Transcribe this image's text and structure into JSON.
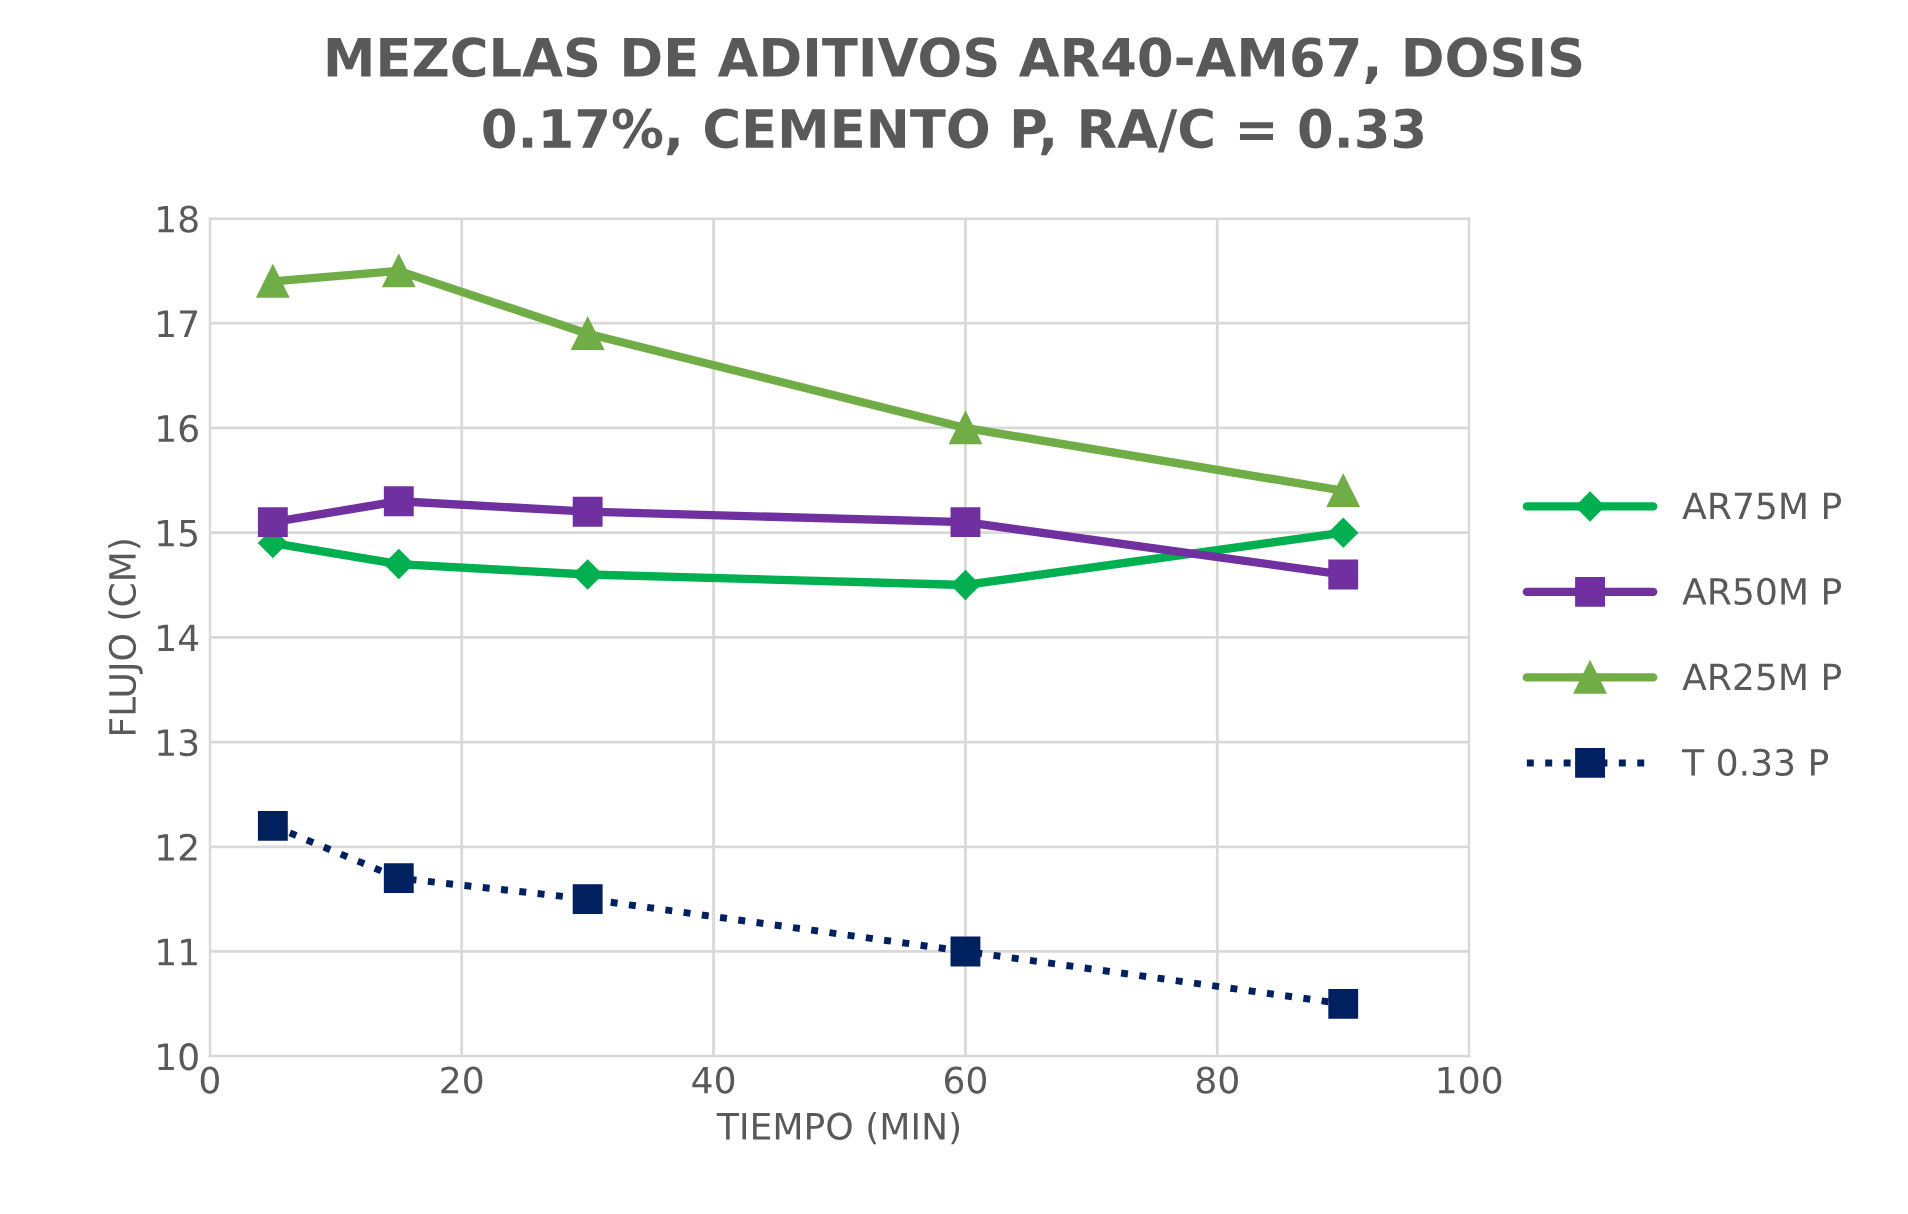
{
  "chart_data": {
    "type": "line",
    "title": "MEZCLAS DE ADITIVOS AR40-AM67, DOSIS\n0.17%, CEMENTO P, RA/C = 0.33",
    "xlabel": "TIEMPO (MIN)",
    "ylabel": "FLUJO (CM)",
    "x": [
      5,
      15,
      30,
      60,
      90
    ],
    "series": [
      {
        "name": "AR75M P",
        "color": "#00b050",
        "marker": "diamond",
        "line_style": "solid",
        "values": [
          14.9,
          14.7,
          14.6,
          14.5,
          15.0
        ]
      },
      {
        "name": "AR50M P",
        "color": "#7030a0",
        "marker": "square",
        "line_style": "solid",
        "values": [
          15.1,
          15.3,
          15.2,
          15.1,
          14.6
        ]
      },
      {
        "name": "AR25M P",
        "color": "#70ad47",
        "marker": "triangle",
        "line_style": "solid",
        "values": [
          17.4,
          17.5,
          16.9,
          16.0,
          15.4
        ]
      },
      {
        "name": "T 0.33 P",
        "color": "#002060",
        "marker": "square",
        "line_style": "dotted",
        "values": [
          12.2,
          11.7,
          11.5,
          11.0,
          10.5
        ]
      }
    ],
    "xlim": [
      0,
      100
    ],
    "xticks": [
      0,
      20,
      40,
      60,
      80,
      100
    ],
    "ylim": [
      10,
      18
    ],
    "yticks": [
      10,
      11,
      12,
      13,
      14,
      15,
      16,
      17,
      18
    ],
    "grid": true,
    "legend": "right"
  }
}
